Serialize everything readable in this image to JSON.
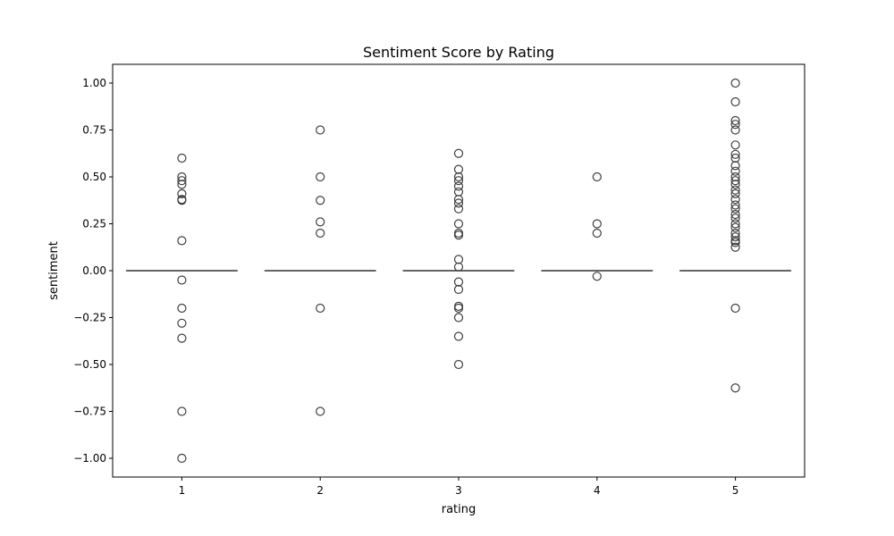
{
  "chart_data": {
    "type": "box",
    "title": "Sentiment Score by Rating",
    "xlabel": "rating",
    "ylabel": "sentiment",
    "categories": [
      "1",
      "2",
      "3",
      "4",
      "5"
    ],
    "ylim": [
      -1.1,
      1.1
    ],
    "yticks": [
      -1.0,
      -0.75,
      -0.5,
      -0.25,
      0.0,
      0.25,
      0.5,
      0.75,
      1.0
    ],
    "ytick_labels": [
      "−1.00",
      "−0.75",
      "−0.50",
      "−0.25",
      "0.00",
      "0.25",
      "0.50",
      "0.75",
      "1.00"
    ],
    "grid": false,
    "box_color": "#3f3f3f",
    "boxes": [
      {
        "category": "1",
        "q1": 0.0,
        "median": 0.0,
        "q3": 0.0,
        "whisker_low": 0.0,
        "whisker_high": 0.0,
        "outliers": [
          0.6,
          0.5,
          0.48,
          0.46,
          0.41,
          0.38,
          0.375,
          0.16,
          -0.05,
          -0.2,
          -0.28,
          -0.36,
          -0.75,
          -1.0
        ]
      },
      {
        "category": "2",
        "q1": 0.0,
        "median": 0.0,
        "q3": 0.0,
        "whisker_low": 0.0,
        "whisker_high": 0.0,
        "outliers": [
          0.75,
          0.5,
          0.375,
          0.26,
          0.2,
          -0.2,
          -0.75
        ]
      },
      {
        "category": "3",
        "q1": 0.0,
        "median": 0.0,
        "q3": 0.0,
        "whisker_low": 0.0,
        "whisker_high": 0.0,
        "outliers": [
          0.625,
          0.54,
          0.5,
          0.48,
          0.45,
          0.42,
          0.38,
          0.36,
          0.33,
          0.25,
          0.2,
          0.19,
          0.06,
          0.02,
          -0.06,
          -0.1,
          -0.19,
          -0.2,
          -0.25,
          -0.35,
          -0.5
        ]
      },
      {
        "category": "4",
        "q1": 0.0,
        "median": 0.0,
        "q3": 0.0,
        "whisker_low": 0.0,
        "whisker_high": 0.0,
        "outliers": [
          0.5,
          0.25,
          0.2,
          -0.03
        ]
      },
      {
        "category": "5",
        "q1": 0.0,
        "median": 0.0,
        "q3": 0.0,
        "whisker_low": 0.0,
        "whisker_high": 0.0,
        "outliers": [
          1.0,
          0.9,
          0.8,
          0.78,
          0.75,
          0.67,
          0.62,
          0.6,
          0.56,
          0.53,
          0.5,
          0.48,
          0.46,
          0.43,
          0.41,
          0.38,
          0.35,
          0.33,
          0.3,
          0.28,
          0.25,
          0.23,
          0.2,
          0.18,
          0.16,
          0.15,
          0.125,
          -0.2,
          -0.625
        ]
      }
    ]
  }
}
